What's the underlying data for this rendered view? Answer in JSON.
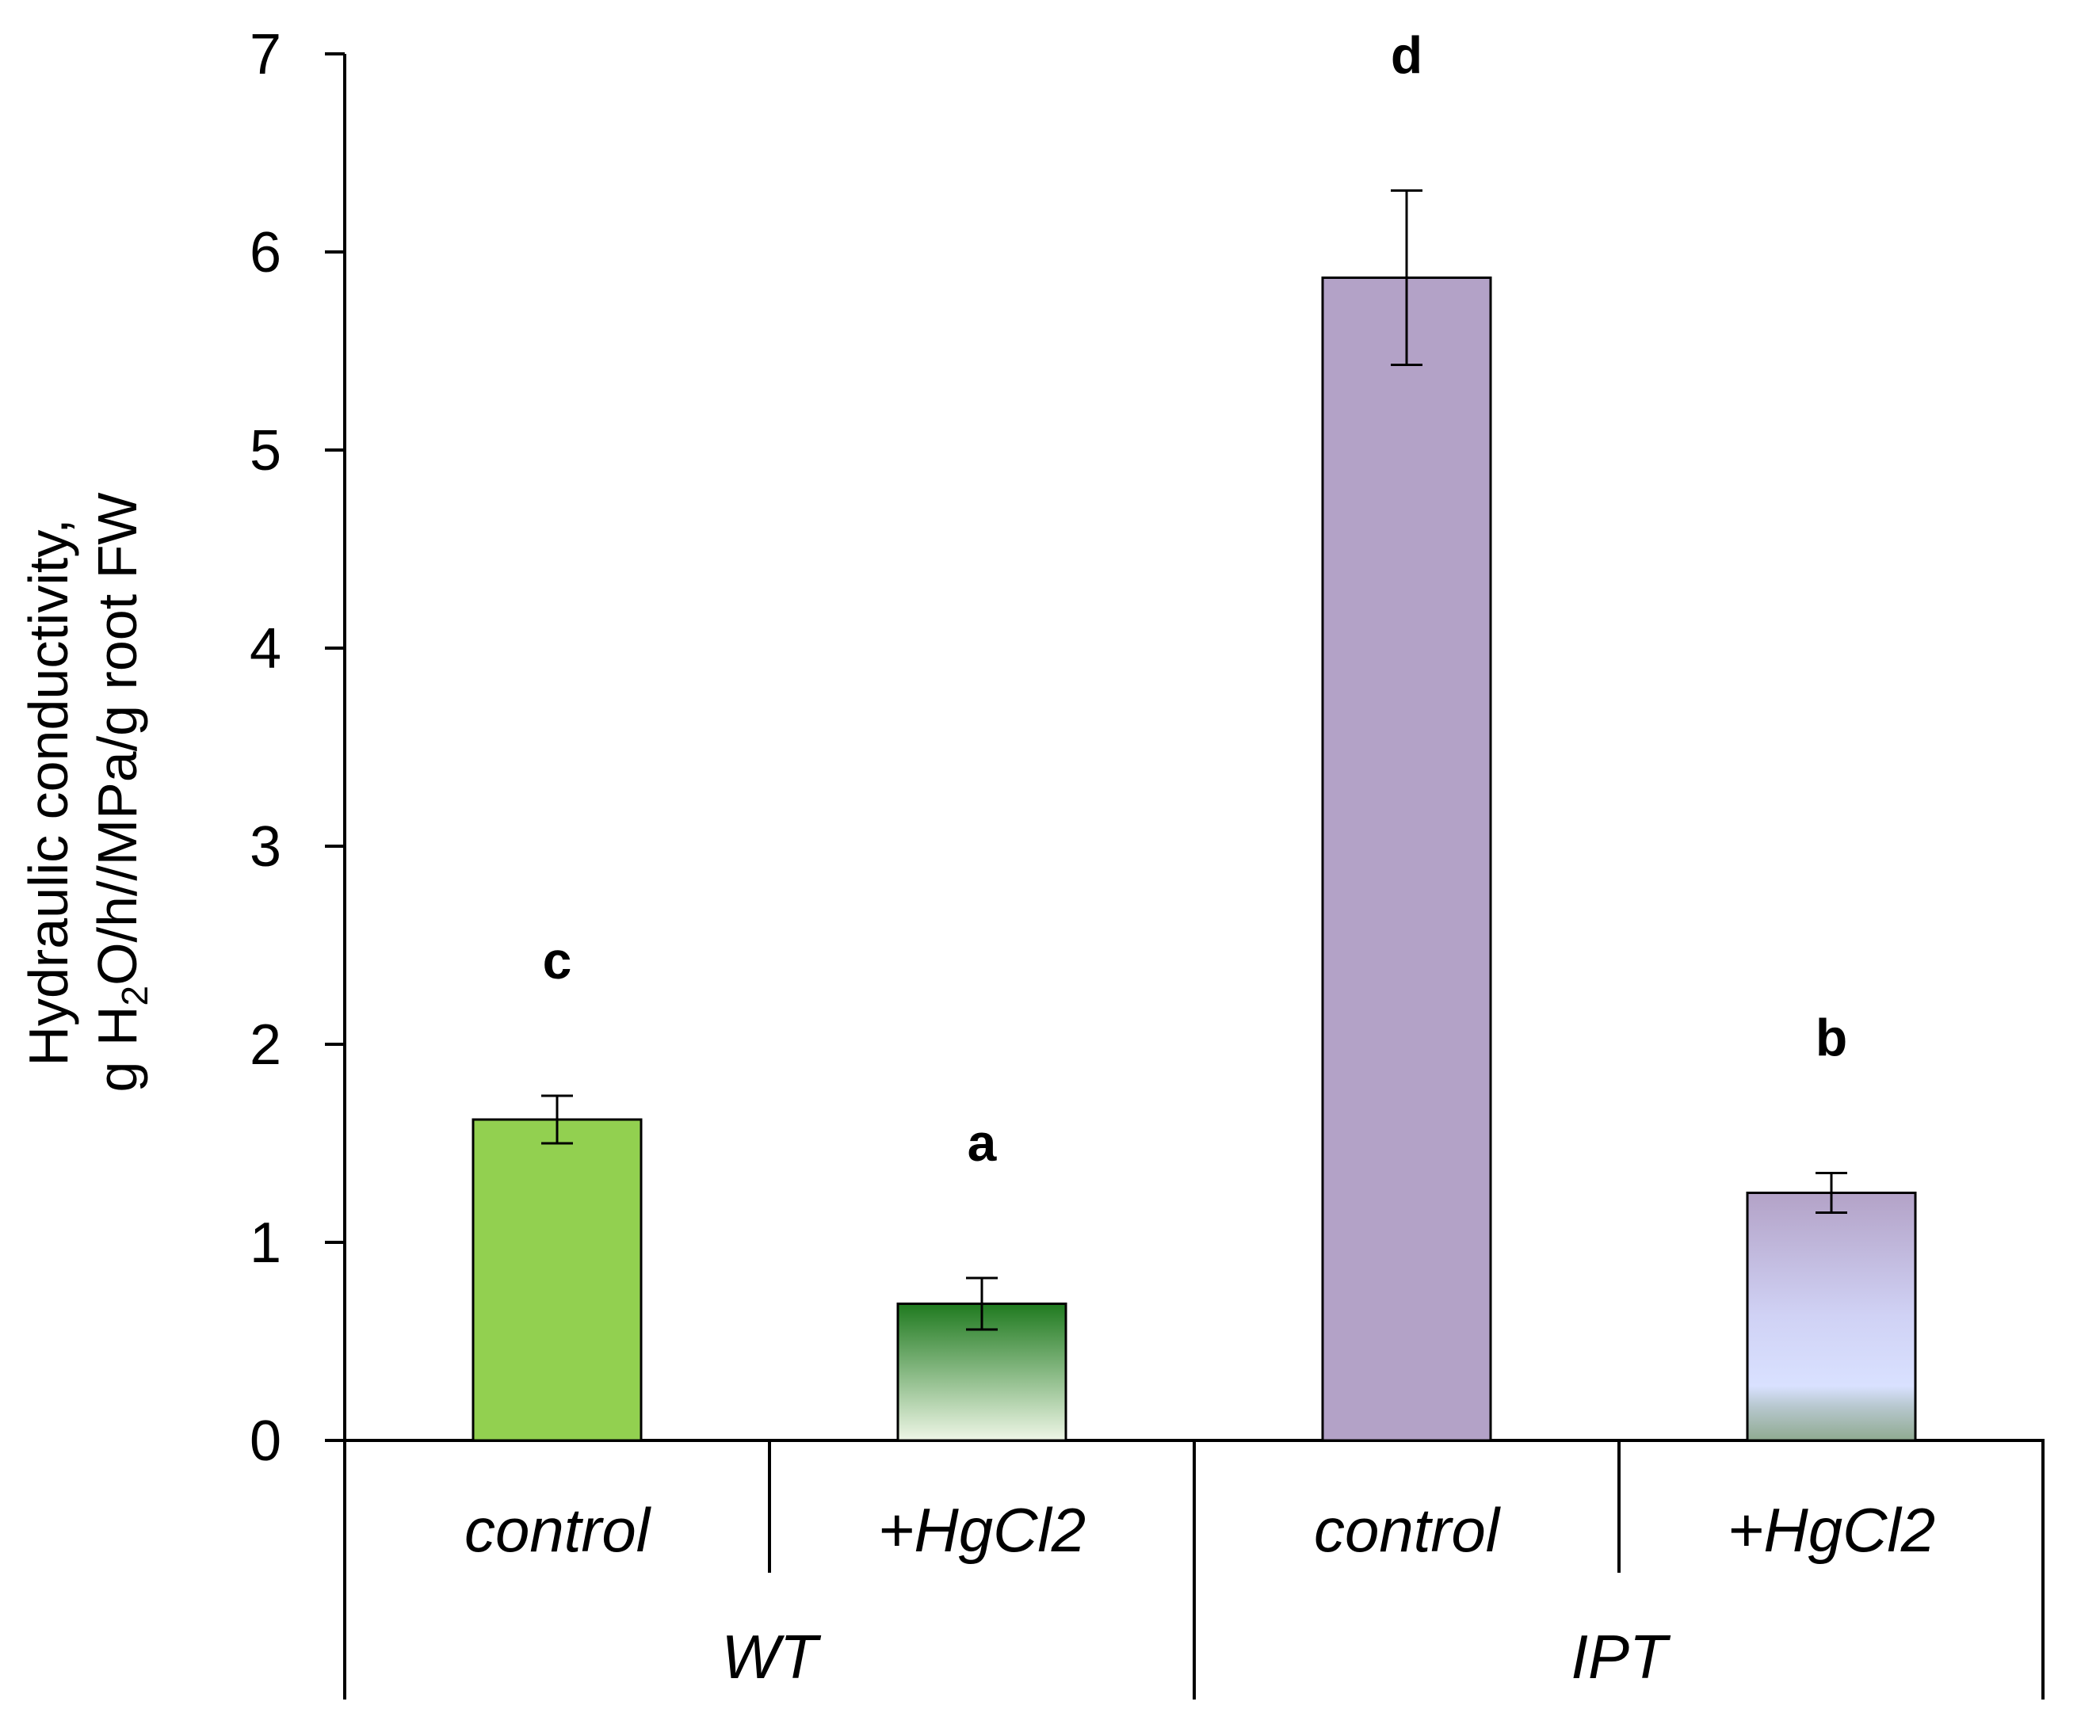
{
  "chart_data": {
    "type": "bar",
    "title": "",
    "ylabel_line1": "Hydraulic conductivity,",
    "ylabel_line2_pre": "g H",
    "ylabel_line2_sub": "2",
    "ylabel_line2_post": "O/h//MPa/g root FW",
    "xlabel": "",
    "ylim": [
      0,
      7
    ],
    "yticks": [
      "0",
      "1",
      "2",
      "3",
      "4",
      "5",
      "6",
      "7"
    ],
    "groups": [
      {
        "label": "WT",
        "categories": [
          "control",
          "+HgCl2"
        ]
      },
      {
        "label": "IPT",
        "categories": [
          "control",
          "+HgCl2"
        ]
      }
    ],
    "bars": [
      {
        "group": "WT",
        "category": "control",
        "value": 1.62,
        "error": 0.12,
        "significance": "c",
        "fill": "solid",
        "color": "#92d050"
      },
      {
        "group": "WT",
        "category": "+HgCl2",
        "value": 0.69,
        "error": 0.13,
        "significance": "a",
        "fill": "gradient",
        "color_top": "#1f7a1f",
        "color_bottom": "#eef6e6"
      },
      {
        "group": "IPT",
        "category": "control",
        "value": 5.87,
        "error": 0.44,
        "significance": "d",
        "fill": "solid",
        "color": "#b3a2c7"
      },
      {
        "group": "IPT",
        "category": "+HgCl2",
        "value": 1.25,
        "error": 0.1,
        "significance": "b",
        "fill": "gradient",
        "color_top": "#b3a2c7",
        "color_mid": "#d9e1ff",
        "color_bottom": "#8faa90"
      }
    ]
  }
}
